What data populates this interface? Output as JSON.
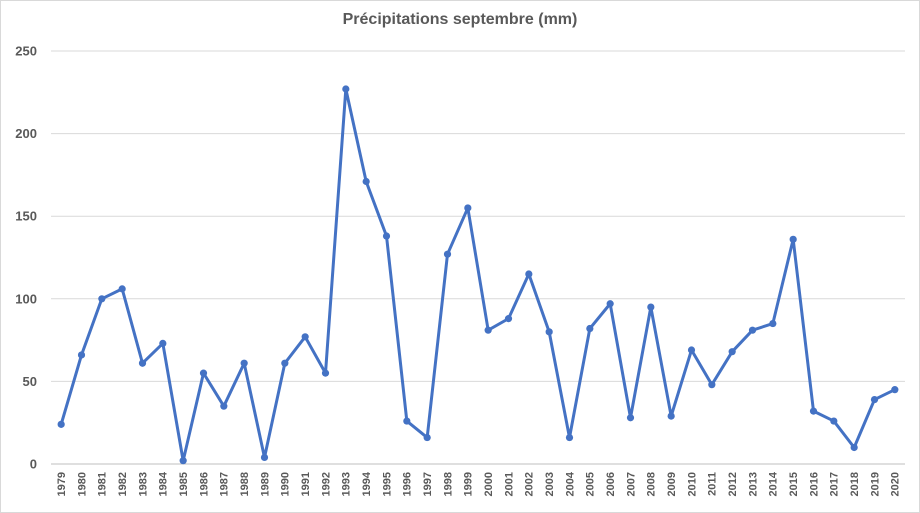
{
  "chart_data": {
    "type": "line",
    "title": "Précipitations septembre (mm)",
    "xlabel": "",
    "ylabel": "",
    "ylim": [
      0,
      250
    ],
    "yticks": [
      0,
      50,
      100,
      150,
      200,
      250
    ],
    "grid": "horizontal",
    "legend": "none",
    "categories": [
      "1979",
      "1980",
      "1981",
      "1982",
      "1983",
      "1984",
      "1985",
      "1986",
      "1987",
      "1988",
      "1989",
      "1990",
      "1991",
      "1992",
      "1993",
      "1994",
      "1995",
      "1996",
      "1997",
      "1998",
      "1999",
      "2000",
      "2001",
      "2002",
      "2003",
      "2004",
      "2005",
      "2006",
      "2007",
      "2008",
      "2009",
      "2010",
      "2011",
      "2012",
      "2013",
      "2014",
      "2015",
      "2016",
      "2017",
      "2018",
      "2019",
      "2020"
    ],
    "series": [
      {
        "color": "#4472c4",
        "values": [
          24,
          66,
          100,
          106,
          61,
          73,
          2,
          55,
          35,
          61,
          4,
          61,
          77,
          55,
          227,
          171,
          138,
          26,
          16,
          127,
          155,
          81,
          88,
          115,
          80,
          16,
          82,
          97,
          28,
          95,
          29,
          69,
          48,
          68,
          81,
          85,
          136,
          32,
          26,
          10,
          39,
          45
        ]
      }
    ]
  }
}
